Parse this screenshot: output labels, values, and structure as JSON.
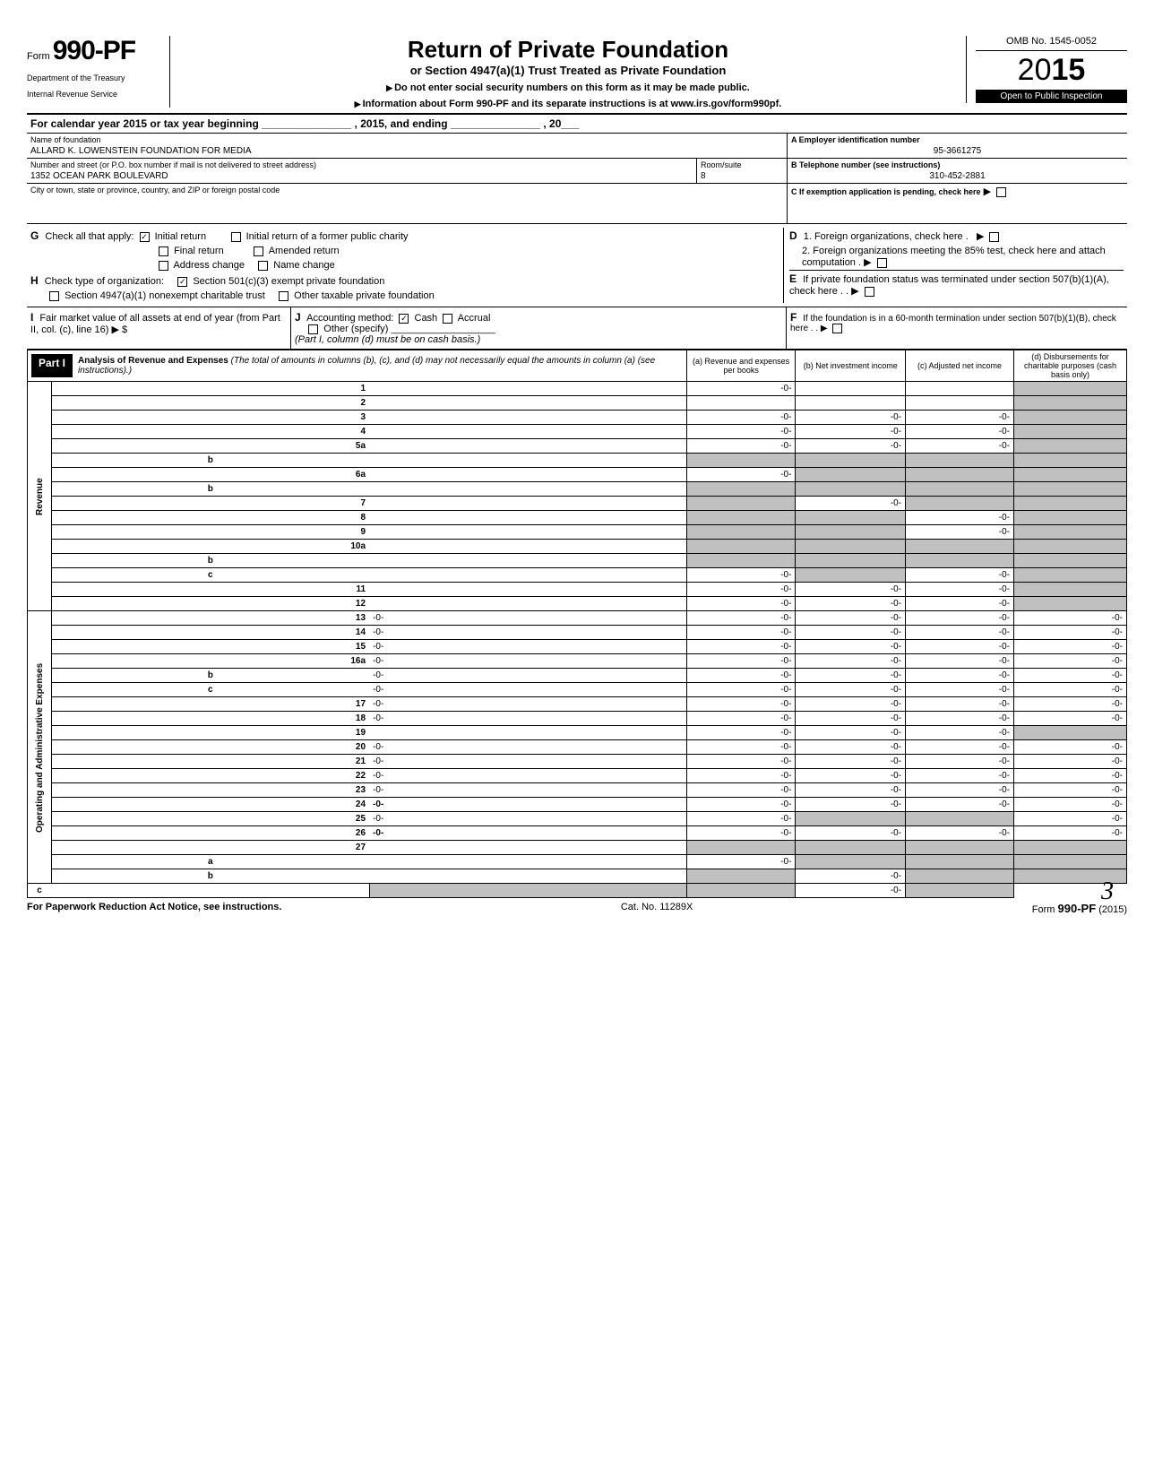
{
  "header": {
    "form_prefix": "Form",
    "form_num": "990-PF",
    "dept1": "Department of the Treasury",
    "dept2": "Internal Revenue Service",
    "title": "Return of Private Foundation",
    "subtitle": "or Section 4947(a)(1) Trust Treated as Private Foundation",
    "note1": "Do not enter social security numbers on this form as it may be made public.",
    "note2": "Information about Form 990-PF and its separate instructions is at www.irs.gov/form990pf.",
    "omb": "OMB No. 1545-0052",
    "year_prefix": "20",
    "year_bold": "15",
    "open_public": "Open to Public Inspection"
  },
  "cal_year": "For calendar year 2015 or tax year beginning _______________ , 2015, and ending _______________ , 20___",
  "name_block": {
    "name_label": "Name of foundation",
    "name_val": "ALLARD K. LOWENSTEIN FOUNDATION FOR MEDIA",
    "addr_label": "Number and street (or P.O. box number if mail is not delivered to street address)",
    "addr_val": "1352 OCEAN PARK BOULEVARD",
    "room_label": "Room/suite",
    "room_val": "8",
    "city_label": "City or town, state or province, country, and ZIP or foreign postal code",
    "city_val": "",
    "ein_label": "A   Employer identification number",
    "ein_val": "95-3661275",
    "tel_label": "B   Telephone number (see instructions)",
    "tel_val": "310-452-2881",
    "c_label": "C   If exemption application is pending, check here"
  },
  "checks": {
    "g_label": "Check all that apply:",
    "g_initial": "Initial return",
    "g_initial_ret": "Initial return of a former public charity",
    "g_final": "Final return",
    "g_amended": "Amended return",
    "g_addr": "Address change",
    "g_name": "Name change",
    "h_label": "Check type of organization:",
    "h_501": "Section 501(c)(3) exempt private foundation",
    "h_4947": "Section 4947(a)(1) nonexempt charitable trust",
    "h_other_tax": "Other taxable private foundation",
    "i_label": "Fair market value of all assets at end of year  (from Part II, col. (c), line 16)",
    "i_dollar": "$",
    "j_label": "Accounting method:",
    "j_cash": "Cash",
    "j_accrual": "Accrual",
    "j_other": "Other (specify)",
    "j_note": "(Part I, column (d) must be on cash basis.)",
    "d_label": "1. Foreign organizations, check here .",
    "d2_label": "2. Foreign organizations meeting the 85% test, check here and attach computation",
    "e_label": "If private foundation status was terminated under section 507(b)(1)(A), check here",
    "f_label": "If the foundation is in a 60-month termination under section 507(b)(1)(B), check here"
  },
  "part1": {
    "badge": "Part I",
    "title": "Analysis of Revenue and Expenses",
    "desc": "(The total of amounts in columns (b), (c), and (d) may not necessarily equal the amounts in column (a) (see instructions).)",
    "col_a": "(a) Revenue and expenses per books",
    "col_b": "(b) Net investment income",
    "col_c": "(c) Adjusted net income",
    "col_d": "(d) Disbursements for charitable purposes (cash basis only)"
  },
  "side": {
    "revenue": "Revenue",
    "expenses": "Operating and Administrative Expenses"
  },
  "rows": [
    {
      "n": "1",
      "s": "",
      "d": "",
      "a": "-0-",
      "b": "",
      "c": "",
      "shade_d": true
    },
    {
      "n": "2",
      "s": "",
      "d": "",
      "a": "",
      "b": "",
      "c": "",
      "shade_d": true
    },
    {
      "n": "3",
      "s": "",
      "d": "",
      "a": "-0-",
      "b": "-0-",
      "c": "-0-",
      "shade_d": true
    },
    {
      "n": "4",
      "s": "",
      "d": "",
      "a": "-0-",
      "b": "-0-",
      "c": "-0-",
      "shade_d": true
    },
    {
      "n": "5a",
      "s": "",
      "d": "",
      "a": "-0-",
      "b": "-0-",
      "c": "-0-",
      "shade_d": true
    },
    {
      "n": "",
      "s": "b",
      "d": "",
      "a": "",
      "b": "",
      "c": "",
      "shade_a": true,
      "shade_b": true,
      "shade_c": true,
      "shade_d": true
    },
    {
      "n": "6a",
      "s": "",
      "d": "",
      "a": "-0-",
      "b": "",
      "c": "",
      "shade_b": true,
      "shade_c": true,
      "shade_d": true
    },
    {
      "n": "",
      "s": "b",
      "d": "",
      "a": "",
      "b": "",
      "c": "",
      "shade_a": true,
      "shade_b": true,
      "shade_c": true,
      "shade_d": true
    },
    {
      "n": "7",
      "s": "",
      "d": "",
      "a": "",
      "b": "-0-",
      "c": "",
      "shade_a": true,
      "shade_c": true,
      "shade_d": true
    },
    {
      "n": "8",
      "s": "",
      "d": "",
      "a": "",
      "b": "",
      "c": "-0-",
      "shade_a": true,
      "shade_b": true,
      "shade_d": true
    },
    {
      "n": "9",
      "s": "",
      "d": "",
      "a": "",
      "b": "",
      "c": "-0-",
      "shade_a": true,
      "shade_b": true,
      "shade_d": true
    },
    {
      "n": "10a",
      "s": "",
      "d": "",
      "a": "",
      "b": "",
      "c": "",
      "shade_a": true,
      "shade_b": true,
      "shade_c": true,
      "shade_d": true
    },
    {
      "n": "",
      "s": "b",
      "d": "",
      "a": "",
      "b": "",
      "c": "",
      "shade_a": true,
      "shade_b": true,
      "shade_c": true,
      "shade_d": true
    },
    {
      "n": "",
      "s": "c",
      "d": "",
      "a": "-0-",
      "b": "",
      "c": "-0-",
      "shade_b": true,
      "shade_d": true
    },
    {
      "n": "11",
      "s": "",
      "d": "",
      "a": "-0-",
      "b": "-0-",
      "c": "-0-",
      "shade_d": true
    },
    {
      "n": "12",
      "s": "",
      "d": "",
      "a": "-0-",
      "b": "-0-",
      "c": "-0-",
      "bold": true,
      "shade_d": true
    },
    {
      "n": "13",
      "s": "",
      "d": "-0-",
      "a": "-0-",
      "b": "-0-",
      "c": "-0-"
    },
    {
      "n": "14",
      "s": "",
      "d": "-0-",
      "a": "-0-",
      "b": "-0-",
      "c": "-0-"
    },
    {
      "n": "15",
      "s": "",
      "d": "-0-",
      "a": "-0-",
      "b": "-0-",
      "c": "-0-"
    },
    {
      "n": "16a",
      "s": "",
      "d": "-0-",
      "a": "-0-",
      "b": "-0-",
      "c": "-0-"
    },
    {
      "n": "",
      "s": "b",
      "d": "-0-",
      "a": "-0-",
      "b": "-0-",
      "c": "-0-"
    },
    {
      "n": "",
      "s": "c",
      "d": "-0-",
      "a": "-0-",
      "b": "-0-",
      "c": "-0-"
    },
    {
      "n": "17",
      "s": "",
      "d": "-0-",
      "a": "-0-",
      "b": "-0-",
      "c": "-0-"
    },
    {
      "n": "18",
      "s": "",
      "d": "-0-",
      "a": "-0-",
      "b": "-0-",
      "c": "-0-"
    },
    {
      "n": "19",
      "s": "",
      "d": "",
      "a": "-0-",
      "b": "-0-",
      "c": "-0-",
      "shade_d": true
    },
    {
      "n": "20",
      "s": "",
      "d": "-0-",
      "a": "-0-",
      "b": "-0-",
      "c": "-0-"
    },
    {
      "n": "21",
      "s": "",
      "d": "-0-",
      "a": "-0-",
      "b": "-0-",
      "c": "-0-"
    },
    {
      "n": "22",
      "s": "",
      "d": "-0-",
      "a": "-0-",
      "b": "-0-",
      "c": "-0-"
    },
    {
      "n": "23",
      "s": "",
      "d": "-0-",
      "a": "-0-",
      "b": "-0-",
      "c": "-0-"
    },
    {
      "n": "24",
      "s": "",
      "d": "-0-",
      "a": "-0-",
      "b": "-0-",
      "c": "-0-",
      "bold": true
    },
    {
      "n": "25",
      "s": "",
      "d": "-0-",
      "a": "-0-",
      "b": "",
      "c": "",
      "shade_b": true,
      "shade_c": true
    },
    {
      "n": "26",
      "s": "",
      "d": "-0-",
      "a": "-0-",
      "b": "-0-",
      "c": "-0-",
      "bold": true
    },
    {
      "n": "27",
      "s": "",
      "d": "",
      "a": "",
      "b": "",
      "c": "",
      "shade_a": true,
      "shade_b": true,
      "shade_c": true,
      "shade_d": true
    },
    {
      "n": "",
      "s": "a",
      "d": "",
      "a": "-0-",
      "b": "",
      "c": "",
      "bold": true,
      "shade_b": true,
      "shade_c": true,
      "shade_d": true
    },
    {
      "n": "",
      "s": "b",
      "d": "",
      "a": "",
      "b": "-0-",
      "c": "",
      "bold": true,
      "shade_a": true,
      "shade_c": true,
      "shade_d": true
    },
    {
      "n": "",
      "s": "c",
      "d": "",
      "a": "",
      "b": "",
      "c": "-0-",
      "bold": true,
      "shade_a": true,
      "shade_b": true,
      "shade_d": true
    }
  ],
  "footer": {
    "left": "For Paperwork Reduction Act Notice, see instructions.",
    "cat": "Cat. No. 11289X",
    "form": "Form",
    "form_bold": "990-PF",
    "year": "(2015)"
  }
}
